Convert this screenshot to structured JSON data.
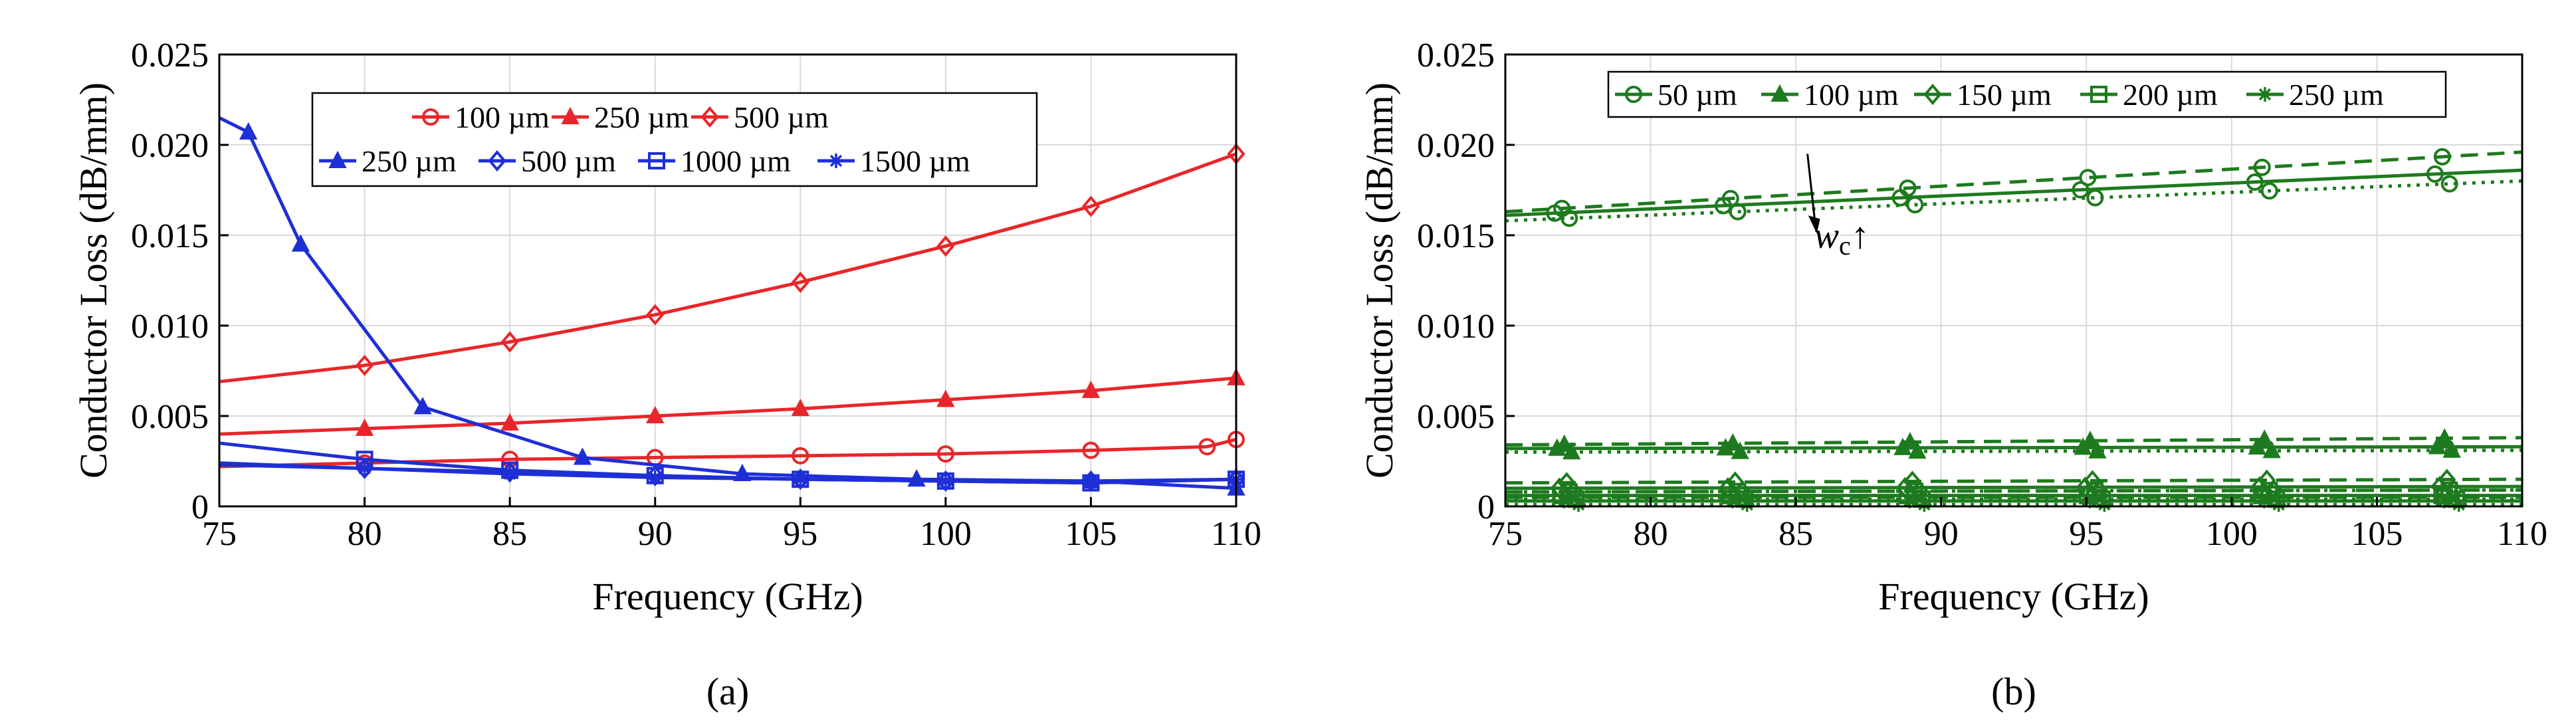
{
  "chart_data": [
    {
      "type": "line",
      "caption": "(a)",
      "xlabel": "Frequency (GHz)",
      "ylabel": "Conductor Loss (dB/mm)",
      "xlim": [
        75,
        110
      ],
      "ylim": [
        0,
        0.025
      ],
      "xticks": [
        "75",
        "80",
        "85",
        "90",
        "95",
        "100",
        "105",
        "110"
      ],
      "yticks": [
        "0",
        "0.005",
        "0.010",
        "0.015",
        "0.020",
        "0.025"
      ],
      "grid": true,
      "legend_position": "top-center",
      "series": [
        {
          "name": "100 µm",
          "color": "#e8262a",
          "marker": "circle",
          "dash": "solid",
          "x": [
            75,
            80,
            85,
            90,
            95,
            100,
            105,
            109,
            110
          ],
          "y": [
            0.0022,
            0.0024,
            0.0026,
            0.0027,
            0.0028,
            0.0029,
            0.0031,
            0.0033,
            0.0037
          ]
        },
        {
          "name": "250 µm",
          "color": "#e8262a",
          "marker": "triangle",
          "dash": "solid",
          "x": [
            75,
            80,
            85,
            90,
            95,
            100,
            105,
            110
          ],
          "y": [
            0.004,
            0.0043,
            0.0046,
            0.005,
            0.0054,
            0.0059,
            0.0064,
            0.0071
          ]
        },
        {
          "name": "500 µm",
          "color": "#e8262a",
          "marker": "diamond",
          "dash": "solid",
          "x": [
            75,
            80,
            85,
            90,
            95,
            100,
            105,
            110
          ],
          "y": [
            0.0069,
            0.0078,
            0.0091,
            0.0106,
            0.0124,
            0.0144,
            0.0166,
            0.0195
          ]
        },
        {
          "name": "250 µm",
          "color": "#1f2fd6",
          "marker": "triangle",
          "dash": "solid",
          "x": [
            75,
            76,
            77.8,
            82,
            87.5,
            93,
            99,
            105,
            110
          ],
          "y": [
            0.0215,
            0.0207,
            0.0145,
            0.0055,
            0.0027,
            0.0018,
            0.0015,
            0.0014,
            0.001
          ]
        },
        {
          "name": "500 µm",
          "color": "#1f2fd6",
          "marker": "diamond",
          "dash": "solid",
          "x": [
            75,
            80,
            85,
            90,
            95,
            100,
            105,
            110
          ],
          "y": [
            0.0023,
            0.0021,
            0.0019,
            0.0017,
            0.0015,
            0.0014,
            0.0014,
            0.0015
          ]
        },
        {
          "name": "1000 µm",
          "color": "#1f2fd6",
          "marker": "square",
          "dash": "solid",
          "x": [
            75,
            80,
            85,
            90,
            95,
            100,
            105,
            110
          ],
          "y": [
            0.0035,
            0.0026,
            0.002,
            0.0017,
            0.0015,
            0.0014,
            0.0013,
            0.0015
          ]
        },
        {
          "name": "1500 µm",
          "color": "#1f2fd6",
          "marker": "asterisk",
          "dash": "solid",
          "x": [
            75,
            80,
            85,
            90,
            95,
            100,
            105,
            110
          ],
          "y": [
            0.0024,
            0.0021,
            0.0018,
            0.0016,
            0.0015,
            0.0014,
            0.0013,
            0.0015
          ]
        }
      ]
    },
    {
      "type": "line",
      "caption": "(b)",
      "xlabel": "Frequency (GHz)",
      "ylabel": "Conductor Loss (dB/mm)",
      "xlim": [
        75,
        110
      ],
      "ylim": [
        0,
        0.025
      ],
      "xticks": [
        "75",
        "80",
        "85",
        "90",
        "95",
        "100",
        "105",
        "110"
      ],
      "yticks": [
        "0",
        "0.005",
        "0.010",
        "0.015",
        "0.020",
        "0.025"
      ],
      "grid": true,
      "legend_position": "top",
      "annotation": {
        "text": "w",
        "subscript": "c",
        "arrow": "↑"
      },
      "color": "#1e7a1e",
      "series": [
        {
          "name": "50 µm",
          "marker": "circle",
          "dash": "solid",
          "x": [
            75,
            110
          ],
          "y": [
            0.0161,
            0.0186
          ]
        },
        {
          "name": "50 µm",
          "marker": "circle",
          "dash": "dashed",
          "x": [
            75,
            110
          ],
          "y": [
            0.0163,
            0.0196
          ]
        },
        {
          "name": "50 µm",
          "marker": "circle",
          "dash": "dotted",
          "x": [
            75,
            110
          ],
          "y": [
            0.0158,
            0.018
          ]
        },
        {
          "name": "100 µm",
          "marker": "triangle",
          "dash": "solid",
          "x": [
            75,
            110
          ],
          "y": [
            0.0032,
            0.0033
          ]
        },
        {
          "name": "100 µm",
          "marker": "triangle",
          "dash": "dashed",
          "x": [
            75,
            110
          ],
          "y": [
            0.0034,
            0.0038
          ]
        },
        {
          "name": "100 µm",
          "marker": "triangle",
          "dash": "dotted",
          "x": [
            75,
            110
          ],
          "y": [
            0.003,
            0.0031
          ]
        },
        {
          "name": "150 µm",
          "marker": "diamond",
          "dash": "solid",
          "x": [
            75,
            110
          ],
          "y": [
            0.001,
            0.0011
          ]
        },
        {
          "name": "150 µm",
          "marker": "diamond",
          "dash": "dashed",
          "x": [
            75,
            110
          ],
          "y": [
            0.0013,
            0.0015
          ]
        },
        {
          "name": "150 µm",
          "marker": "diamond",
          "dash": "dotted",
          "x": [
            75,
            110
          ],
          "y": [
            0.0008,
            0.0009
          ]
        },
        {
          "name": "200 µm",
          "marker": "square",
          "dash": "solid",
          "x": [
            75,
            110
          ],
          "y": [
            0.0006,
            0.0006
          ]
        },
        {
          "name": "200 µm",
          "marker": "square",
          "dash": "dashed",
          "x": [
            75,
            110
          ],
          "y": [
            0.0008,
            0.0009
          ]
        },
        {
          "name": "200 µm",
          "marker": "square",
          "dash": "dotted",
          "x": [
            75,
            110
          ],
          "y": [
            0.0004,
            0.0004
          ]
        },
        {
          "name": "250 µm",
          "marker": "asterisk",
          "dash": "solid",
          "x": [
            75,
            110
          ],
          "y": [
            0.0003,
            0.0003
          ]
        },
        {
          "name": "250 µm",
          "marker": "asterisk",
          "dash": "dashed",
          "x": [
            75,
            110
          ],
          "y": [
            0.0005,
            0.0005
          ]
        },
        {
          "name": "250 µm",
          "marker": "asterisk",
          "dash": "dotted",
          "x": [
            75,
            110
          ],
          "y": [
            0.0001,
            0.0001
          ]
        }
      ]
    }
  ]
}
